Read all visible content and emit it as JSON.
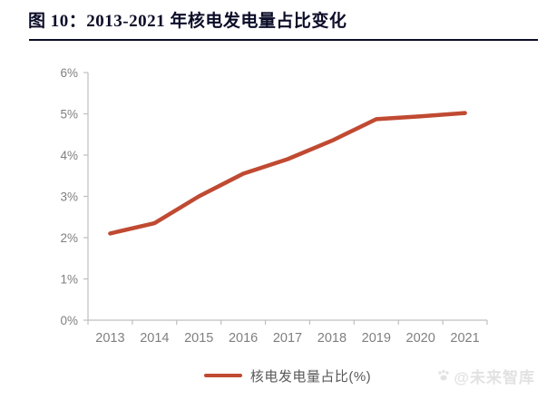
{
  "title": {
    "text": "图 10：2013-2021 年核电发电量占比变化"
  },
  "watermark": {
    "icon": "paw-icon",
    "text": "@未来智库",
    "color": "#E2E2E2"
  },
  "chart_data": {
    "type": "line",
    "title": "图 10：2013-2021 年核电发电量占比变化",
    "categories": [
      "2013",
      "2014",
      "2015",
      "2016",
      "2017",
      "2018",
      "2019",
      "2020",
      "2021"
    ],
    "series": [
      {
        "name": "核电发电量占比(%)",
        "color": "#C04A32",
        "values": [
          2.1,
          2.35,
          3.0,
          3.55,
          3.9,
          4.35,
          4.87,
          4.94,
          5.02
        ]
      }
    ],
    "xlabel": "",
    "ylabel": "",
    "ylim": [
      0,
      6
    ],
    "y_tick_step": 1,
    "y_tick_suffix": "%",
    "y_tick_labels": [
      "0%",
      "1%",
      "2%",
      "3%",
      "4%",
      "5%",
      "6%"
    ],
    "grid": false,
    "legend_position": "bottom",
    "axis_color": "#BFBFBF",
    "tick_label_color": "#7F7F7F"
  }
}
